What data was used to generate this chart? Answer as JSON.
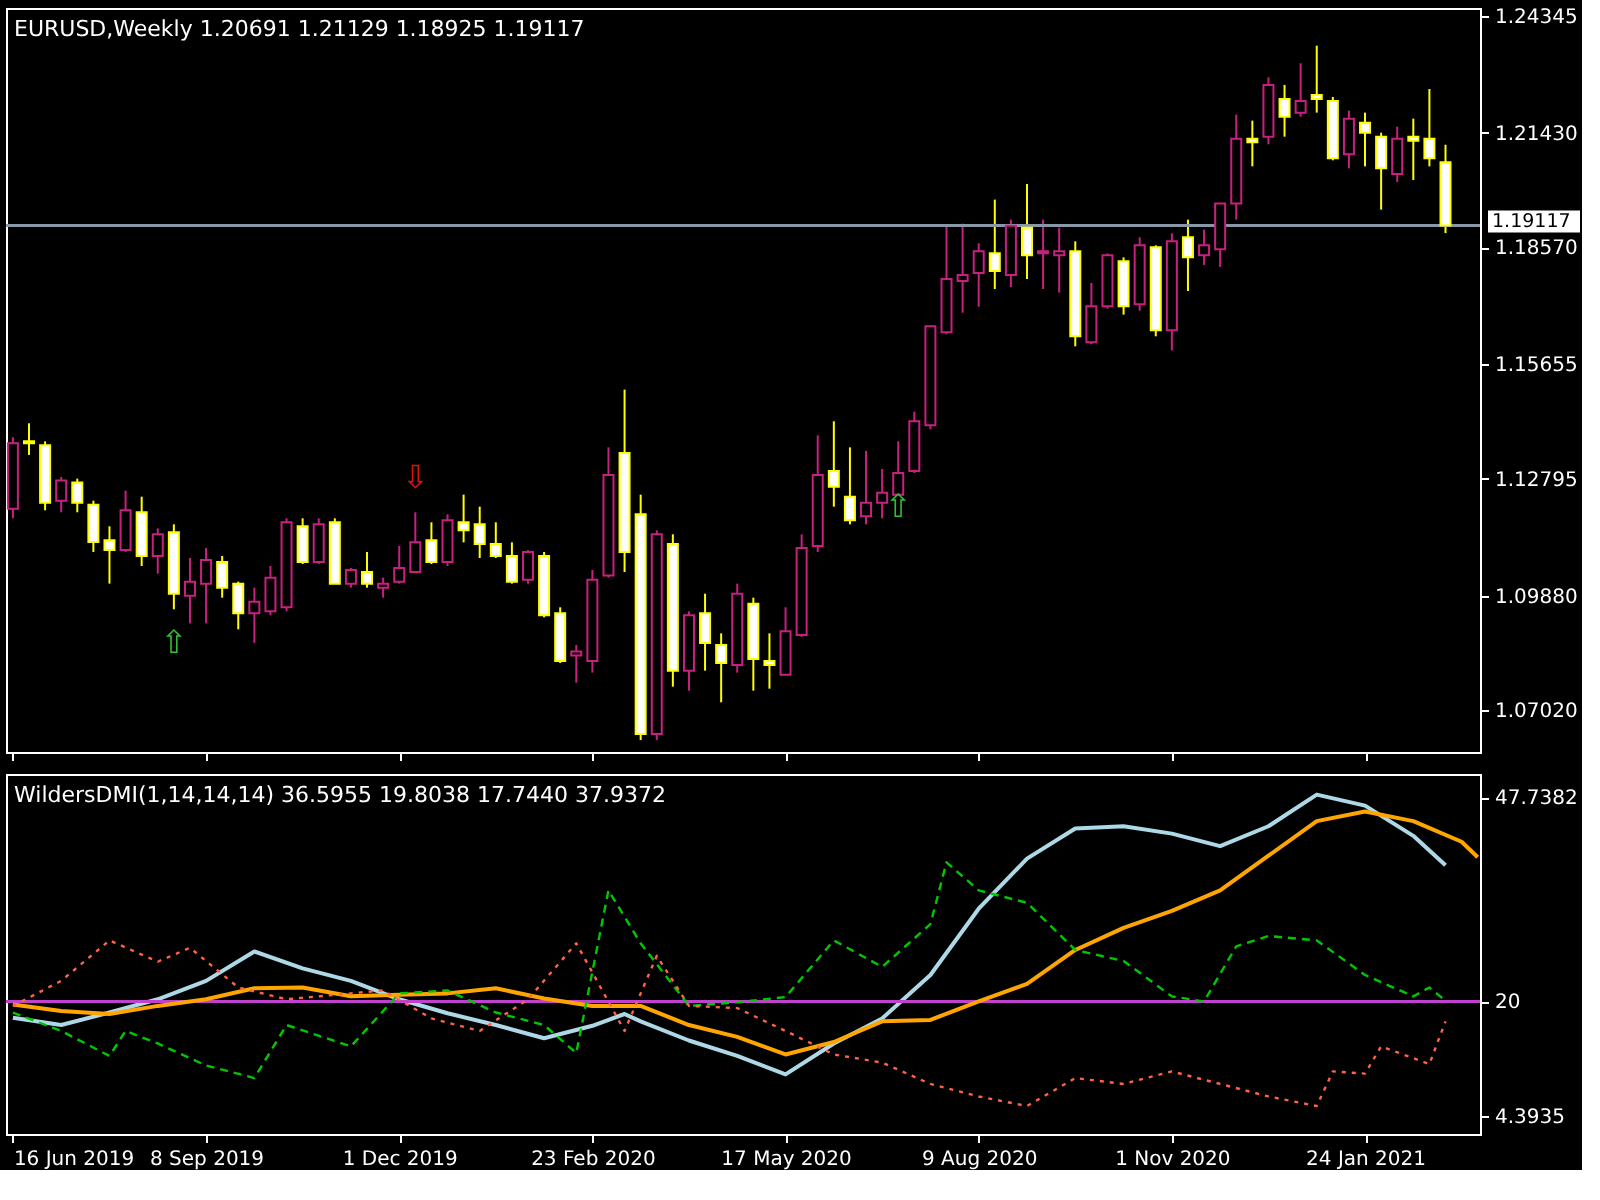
{
  "chart_data": [
    {
      "type": "candlestick",
      "title": "EURUSD,Weekly  1.20691 1.21129 1.18925 1.19117",
      "x": [
        "2019-06-16",
        "2019-06-23",
        "2019-06-30",
        "2019-07-07",
        "2019-07-14",
        "2019-07-21",
        "2019-07-28",
        "2019-08-04",
        "2019-08-11",
        "2019-08-18",
        "2019-08-25",
        "2019-09-01",
        "2019-09-08",
        "2019-09-15",
        "2019-09-22",
        "2019-09-29",
        "2019-10-06",
        "2019-10-13",
        "2019-10-20",
        "2019-10-27",
        "2019-11-03",
        "2019-11-10",
        "2019-11-17",
        "2019-11-24",
        "2019-12-01",
        "2019-12-08",
        "2019-12-15",
        "2019-12-22",
        "2019-12-29",
        "2020-01-05",
        "2020-01-12",
        "2020-01-19",
        "2020-01-26",
        "2020-02-02",
        "2020-02-09",
        "2020-02-16",
        "2020-02-23",
        "2020-03-01",
        "2020-03-08",
        "2020-03-15",
        "2020-03-22",
        "2020-03-29",
        "2020-04-05",
        "2020-04-12",
        "2020-04-19",
        "2020-04-26",
        "2020-05-03",
        "2020-05-10",
        "2020-05-17",
        "2020-05-24",
        "2020-05-31",
        "2020-06-07",
        "2020-06-14",
        "2020-06-21",
        "2020-06-28",
        "2020-07-05",
        "2020-07-12",
        "2020-07-19",
        "2020-07-26",
        "2020-08-02",
        "2020-08-09",
        "2020-08-16",
        "2020-08-23",
        "2020-08-30",
        "2020-09-06",
        "2020-09-13",
        "2020-09-20",
        "2020-09-27",
        "2020-10-04",
        "2020-10-11",
        "2020-10-18",
        "2020-10-25",
        "2020-11-01",
        "2020-11-08",
        "2020-11-15",
        "2020-11-22",
        "2020-11-29",
        "2020-12-06",
        "2020-12-13",
        "2020-12-20",
        "2020-12-27",
        "2021-01-03",
        "2021-01-10",
        "2021-01-17",
        "2021-01-24",
        "2021-01-31",
        "2021-02-07",
        "2021-02-14",
        "2021-02-21",
        "2021-02-28"
      ],
      "ohlc": [
        [
          1.1205,
          1.1383,
          1.1181,
          1.1368
        ],
        [
          1.1373,
          1.1418,
          1.1339,
          1.1368
        ],
        [
          1.1363,
          1.1373,
          1.1201,
          1.122
        ],
        [
          1.1225,
          1.1284,
          1.1196,
          1.1275
        ],
        [
          1.127,
          1.128,
          1.1196,
          1.122
        ],
        [
          1.1215,
          1.1225,
          1.1097,
          1.1122
        ],
        [
          1.1126,
          1.1161,
          1.1018,
          1.1102
        ],
        [
          1.1102,
          1.125,
          1.1097,
          1.1201
        ],
        [
          1.1196,
          1.1235,
          1.1062,
          1.1087
        ],
        [
          1.1087,
          1.1156,
          1.1043,
          1.1141
        ],
        [
          1.1146,
          1.1166,
          1.0954,
          1.0993
        ],
        [
          1.0988,
          1.1082,
          1.0919,
          1.1023
        ],
        [
          1.1018,
          1.1107,
          1.0919,
          1.1077
        ],
        [
          1.1072,
          1.1087,
          1.0983,
          1.1008
        ],
        [
          1.1018,
          1.1023,
          1.0904,
          1.0944
        ],
        [
          1.0944,
          1.1008,
          1.087,
          1.0973
        ],
        [
          1.0949,
          1.1062,
          1.0939,
          1.1033
        ],
        [
          1.0959,
          1.1181,
          1.0949,
          1.1171
        ],
        [
          1.1161,
          1.1181,
          1.1067,
          1.1072
        ],
        [
          1.1072,
          1.1181,
          1.1067,
          1.1166
        ],
        [
          1.1171,
          1.1181,
          1.1018,
          1.1018
        ],
        [
          1.1018,
          1.1057,
          1.1008,
          1.1052
        ],
        [
          1.1047,
          1.1097,
          1.1008,
          1.1018
        ],
        [
          1.1008,
          1.1033,
          1.0983,
          1.1018
        ],
        [
          1.1023,
          1.1112,
          1.1018,
          1.1057
        ],
        [
          1.1047,
          1.1196,
          1.1047,
          1.1121
        ],
        [
          1.1126,
          1.1171,
          1.1067,
          1.1072
        ],
        [
          1.1072,
          1.1191,
          1.1062,
          1.1176
        ],
        [
          1.1171,
          1.124,
          1.1121,
          1.1151
        ],
        [
          1.1166,
          1.121,
          1.1082,
          1.1117
        ],
        [
          1.1117,
          1.1171,
          1.1082,
          1.1087
        ],
        [
          1.1087,
          1.1121,
          1.1018,
          1.1023
        ],
        [
          1.1028,
          1.1102,
          1.1018,
          1.1097
        ],
        [
          1.1087,
          1.1097,
          1.0934,
          1.0939
        ],
        [
          1.0944,
          1.0959,
          1.082,
          1.0825
        ],
        [
          1.0839,
          1.0865,
          1.0771,
          1.0849
        ],
        [
          1.0825,
          1.1052,
          1.0796,
          1.1028
        ],
        [
          1.1038,
          1.1358,
          1.1033,
          1.1289
        ],
        [
          1.1344,
          1.1502,
          1.1047,
          1.1097
        ],
        [
          1.1191,
          1.124,
          1.0628,
          1.0643
        ],
        [
          1.0643,
          1.1151,
          1.0628,
          1.1141
        ],
        [
          1.1117,
          1.1141,
          1.0761,
          1.0801
        ],
        [
          1.0801,
          1.0949,
          1.0751,
          1.0939
        ],
        [
          1.0944,
          1.0993,
          1.0801,
          1.087
        ],
        [
          1.0865,
          1.0894,
          1.0722,
          1.082
        ],
        [
          1.0815,
          1.1018,
          1.0796,
          1.0993
        ],
        [
          1.0968,
          1.0983,
          1.0751,
          1.083
        ],
        [
          1.0825,
          1.0894,
          1.0756,
          1.0815
        ],
        [
          1.0791,
          1.0959,
          1.0791,
          1.0899
        ],
        [
          1.089,
          1.1141,
          1.0885,
          1.1107
        ],
        [
          1.1112,
          1.1388,
          1.1097,
          1.1289
        ],
        [
          1.1299,
          1.1423,
          1.121,
          1.126
        ],
        [
          1.1235,
          1.1358,
          1.1166,
          1.1176
        ],
        [
          1.1186,
          1.1349,
          1.1166,
          1.122
        ],
        [
          1.122,
          1.1304,
          1.1181,
          1.1245
        ],
        [
          1.124,
          1.1373,
          1.124,
          1.1294
        ],
        [
          1.1299,
          1.1447,
          1.1294,
          1.1423
        ],
        [
          1.1413,
          1.166,
          1.1403,
          1.166
        ],
        [
          1.1645,
          1.1911,
          1.164,
          1.1778
        ],
        [
          1.1773,
          1.1916,
          1.1694,
          1.1788
        ],
        [
          1.1793,
          1.1867,
          1.1709,
          1.1847
        ],
        [
          1.1842,
          1.1976,
          1.1753,
          1.1798
        ],
        [
          1.1788,
          1.1926,
          1.1758,
          1.1911
        ],
        [
          1.1906,
          1.2015,
          1.1778,
          1.1837
        ],
        [
          1.1842,
          1.1926,
          1.1753,
          1.1847
        ],
        [
          1.1837,
          1.1906,
          1.1744,
          1.1847
        ],
        [
          1.1847,
          1.1872,
          1.161,
          1.1635
        ],
        [
          1.162,
          1.1768,
          1.1615,
          1.171
        ],
        [
          1.171,
          1.1842,
          1.1704,
          1.1837
        ],
        [
          1.1822,
          1.1832,
          1.1689,
          1.171
        ],
        [
          1.1715,
          1.1882,
          1.1699,
          1.1862
        ],
        [
          1.1857,
          1.1862,
          1.1635,
          1.165
        ],
        [
          1.165,
          1.1892,
          1.16,
          1.1872
        ],
        [
          1.1882,
          1.1926,
          1.1748,
          1.1832
        ],
        [
          1.1837,
          1.1901,
          1.1813,
          1.1862
        ],
        [
          1.1852,
          1.1966,
          1.1808,
          1.1966
        ],
        [
          1.1966,
          1.2188,
          1.1926,
          1.2128
        ],
        [
          1.2128,
          1.2173,
          1.2059,
          1.2119
        ],
        [
          1.2133,
          1.2281,
          1.2114,
          1.2262
        ],
        [
          1.2227,
          1.2262,
          1.2133,
          1.2183
        ],
        [
          1.2193,
          1.2316,
          1.2183,
          1.2222
        ],
        [
          1.2237,
          1.236,
          1.2193,
          1.2227
        ],
        [
          1.2222,
          1.2232,
          1.2074,
          1.2079
        ],
        [
          1.2089,
          1.2198,
          1.2054,
          1.2178
        ],
        [
          1.2168,
          1.2193,
          1.2059,
          1.2143
        ],
        [
          1.2133,
          1.2143,
          1.1951,
          1.2054
        ],
        [
          1.204,
          1.2158,
          1.202,
          1.2128
        ],
        [
          1.2133,
          1.2178,
          1.2025,
          1.2123
        ],
        [
          1.2128,
          1.2252,
          1.2059,
          1.2079
        ],
        [
          1.20691,
          1.21129,
          1.18925,
          1.19117
        ]
      ],
      "xlim": [
        "2019-06-13",
        "2021-03-15"
      ],
      "xticks": [
        {
          "value": "2019-06-16",
          "label": null
        },
        {
          "value": "2019-09-08",
          "label": null
        },
        {
          "value": "2019-12-01",
          "label": null
        },
        {
          "value": "2020-02-23",
          "label": null
        },
        {
          "value": "2020-05-17",
          "label": null
        },
        {
          "value": "2020-08-09",
          "label": null
        },
        {
          "value": "2020-11-01",
          "label": null
        },
        {
          "value": "2021-01-24",
          "label": null
        }
      ],
      "ylim": [
        1.0598,
        1.2454
      ],
      "yticks": [
        1.24345,
        {
          "value": 1.2143,
          "label": "1.21430"
        },
        {
          "value": 1.1857,
          "label": "1.18570"
        },
        1.15655,
        1.12795,
        {
          "value": 1.0988,
          "label": "1.09880"
        },
        {
          "value": 1.0702,
          "label": "1.07020"
        }
      ],
      "tick_labels": "y",
      "ref_lines": [
        {
          "axis": "y",
          "value": 1.19117,
          "label": "1.19117",
          "color": "#8898a8"
        }
      ],
      "annotations": [
        {
          "text": "⇧",
          "x": "2019-08-25",
          "y": 1.0954
        },
        {
          "text": "⇩",
          "x": "2019-12-08",
          "y": 1.1196
        },
        {
          "text": "⇧",
          "x": "2020-07-05",
          "y": 1.1294
        }
      ]
    },
    {
      "type": "line",
      "title": "WildersDMI(1,14,14,14) 36.5955 19.8038 17.7440 37.9372",
      "series": [
        {
          "color": "#add8e6",
          "line_style": "solid",
          "x": [
            "2019-06-16",
            "2019-07-07",
            "2019-07-28",
            "2019-08-18",
            "2019-09-08",
            "2019-09-29",
            "2019-10-20",
            "2019-11-10",
            "2019-12-01",
            "2019-12-22",
            "2020-01-12",
            "2020-02-02",
            "2020-02-23",
            "2020-03-08",
            "2020-03-15",
            "2020-04-05",
            "2020-04-26",
            "2020-05-17",
            "2020-06-07",
            "2020-06-28",
            "2020-07-19",
            "2020-08-09",
            "2020-08-30",
            "2020-09-20",
            "2020-10-11",
            "2020-11-01",
            "2020-11-22",
            "2020-12-13",
            "2021-01-03",
            "2021-01-24",
            "2021-02-14",
            "2021-02-28"
          ],
          "values": [
            17.8,
            16.8,
            18.5,
            20.3,
            22.8,
            26.8,
            24.5,
            22.8,
            20.3,
            18.4,
            16.8,
            15.0,
            16.7,
            18.3,
            17.3,
            14.7,
            12.6,
            10.1,
            14.3,
            17.7,
            23.6,
            32.6,
            39.4,
            43.5,
            43.8,
            42.8,
            41.1,
            43.8,
            48.1,
            46.6,
            42.5,
            38.5
          ]
        },
        {
          "color": "#ffa500",
          "line_style": "solid",
          "x": [
            "2019-06-16",
            "2019-07-07",
            "2019-07-28",
            "2019-08-18",
            "2019-09-08",
            "2019-09-29",
            "2019-10-20",
            "2019-11-10",
            "2019-12-01",
            "2019-12-22",
            "2020-01-12",
            "2020-02-02",
            "2020-02-23",
            "2020-03-15",
            "2020-04-05",
            "2020-04-26",
            "2020-05-17",
            "2020-06-07",
            "2020-06-28",
            "2020-07-19",
            "2020-08-09",
            "2020-08-30",
            "2020-09-20",
            "2020-10-11",
            "2020-11-01",
            "2020-11-22",
            "2020-12-13",
            "2021-01-03",
            "2021-01-24",
            "2021-02-14",
            "2021-03-07",
            "2021-03-14"
          ],
          "values": [
            19.6,
            18.7,
            18.3,
            19.4,
            20.3,
            21.8,
            21.9,
            20.7,
            20.9,
            21.1,
            21.8,
            20.4,
            19.4,
            19.4,
            16.8,
            15.2,
            12.8,
            14.5,
            17.3,
            17.5,
            20.0,
            22.4,
            27.0,
            30.0,
            32.3,
            35.1,
            39.8,
            44.5,
            45.8,
            44.5,
            41.7,
            39.6
          ]
        },
        {
          "color": "#00c800",
          "line_style": "dashed",
          "x": [
            "2019-06-16",
            "2019-07-07",
            "2019-07-28",
            "2019-08-04",
            "2019-08-18",
            "2019-09-08",
            "2019-09-29",
            "2019-10-13",
            "2019-11-10",
            "2019-12-01",
            "2019-12-22",
            "2020-01-12",
            "2020-02-02",
            "2020-02-16",
            "2020-03-01",
            "2020-03-15",
            "2020-04-05",
            "2020-04-26",
            "2020-05-17",
            "2020-06-07",
            "2020-06-28",
            "2020-07-19",
            "2020-07-26",
            "2020-08-09",
            "2020-08-30",
            "2020-09-20",
            "2020-10-11",
            "2020-11-01",
            "2020-11-15",
            "2020-11-29",
            "2020-12-13",
            "2021-01-03",
            "2021-01-24",
            "2021-02-14",
            "2021-02-21",
            "2021-02-28"
          ],
          "values": [
            18.5,
            16.0,
            12.6,
            16.0,
            14.3,
            11.3,
            9.6,
            16.8,
            13.9,
            21.1,
            21.5,
            18.5,
            16.8,
            13.0,
            35.1,
            27.9,
            19.4,
            19.9,
            20.6,
            28.3,
            24.7,
            30.5,
            38.9,
            35.1,
            33.4,
            27.0,
            25.5,
            20.7,
            20.0,
            27.5,
            28.9,
            28.3,
            23.6,
            20.7,
            21.9,
            20.1
          ]
        },
        {
          "color": "#ff6347",
          "line_style": "dotted",
          "x": [
            "2019-06-16",
            "2019-07-07",
            "2019-07-28",
            "2019-08-18",
            "2019-09-01",
            "2019-09-22",
            "2019-10-13",
            "2019-11-03",
            "2019-11-24",
            "2019-12-15",
            "2020-01-05",
            "2020-01-26",
            "2020-02-16",
            "2020-03-08",
            "2020-03-22",
            "2020-04-05",
            "2020-04-26",
            "2020-05-17",
            "2020-06-07",
            "2020-06-28",
            "2020-07-19",
            "2020-08-09",
            "2020-08-30",
            "2020-09-20",
            "2020-10-11",
            "2020-11-01",
            "2020-11-22",
            "2020-12-13",
            "2021-01-03",
            "2021-01-10",
            "2021-01-24",
            "2021-01-31",
            "2021-02-14",
            "2021-02-21",
            "2021-02-28"
          ],
          "values": [
            19.4,
            22.8,
            28.3,
            25.4,
            27.3,
            21.9,
            20.3,
            20.9,
            21.5,
            17.7,
            16.0,
            20.3,
            27.9,
            16.0,
            26.2,
            19.4,
            19.1,
            16.0,
            12.8,
            11.7,
            8.8,
            7.1,
            5.8,
            9.6,
            8.8,
            10.5,
            8.8,
            7.1,
            5.8,
            10.5,
            10.2,
            13.9,
            12.3,
            11.5,
            17.3
          ]
        }
      ],
      "xlim": [
        "2019-06-13",
        "2021-03-15"
      ],
      "xticks": [
        {
          "value": "2019-06-16",
          "label": "16 Jun 2019"
        },
        {
          "value": "2019-09-08",
          "label": "8 Sep 2019"
        },
        {
          "value": "2019-12-01",
          "label": "1 Dec 2019"
        },
        {
          "value": "2020-02-23",
          "label": "23 Feb 2020"
        },
        {
          "value": "2020-05-17",
          "label": "17 May 2020"
        },
        {
          "value": "2020-08-09",
          "label": "9 Aug 2020"
        },
        {
          "value": "2020-11-01",
          "label": "1 Nov 2020"
        },
        {
          "value": "2021-01-24",
          "label": "24 Jan 2021"
        }
      ],
      "ylim": [
        2.0,
        50.9
      ],
      "yticks": [
        47.7382,
        20,
        4.3935
      ],
      "ref_lines": [
        {
          "axis": "y",
          "value": 20,
          "color": "#c040d0"
        }
      ]
    }
  ]
}
